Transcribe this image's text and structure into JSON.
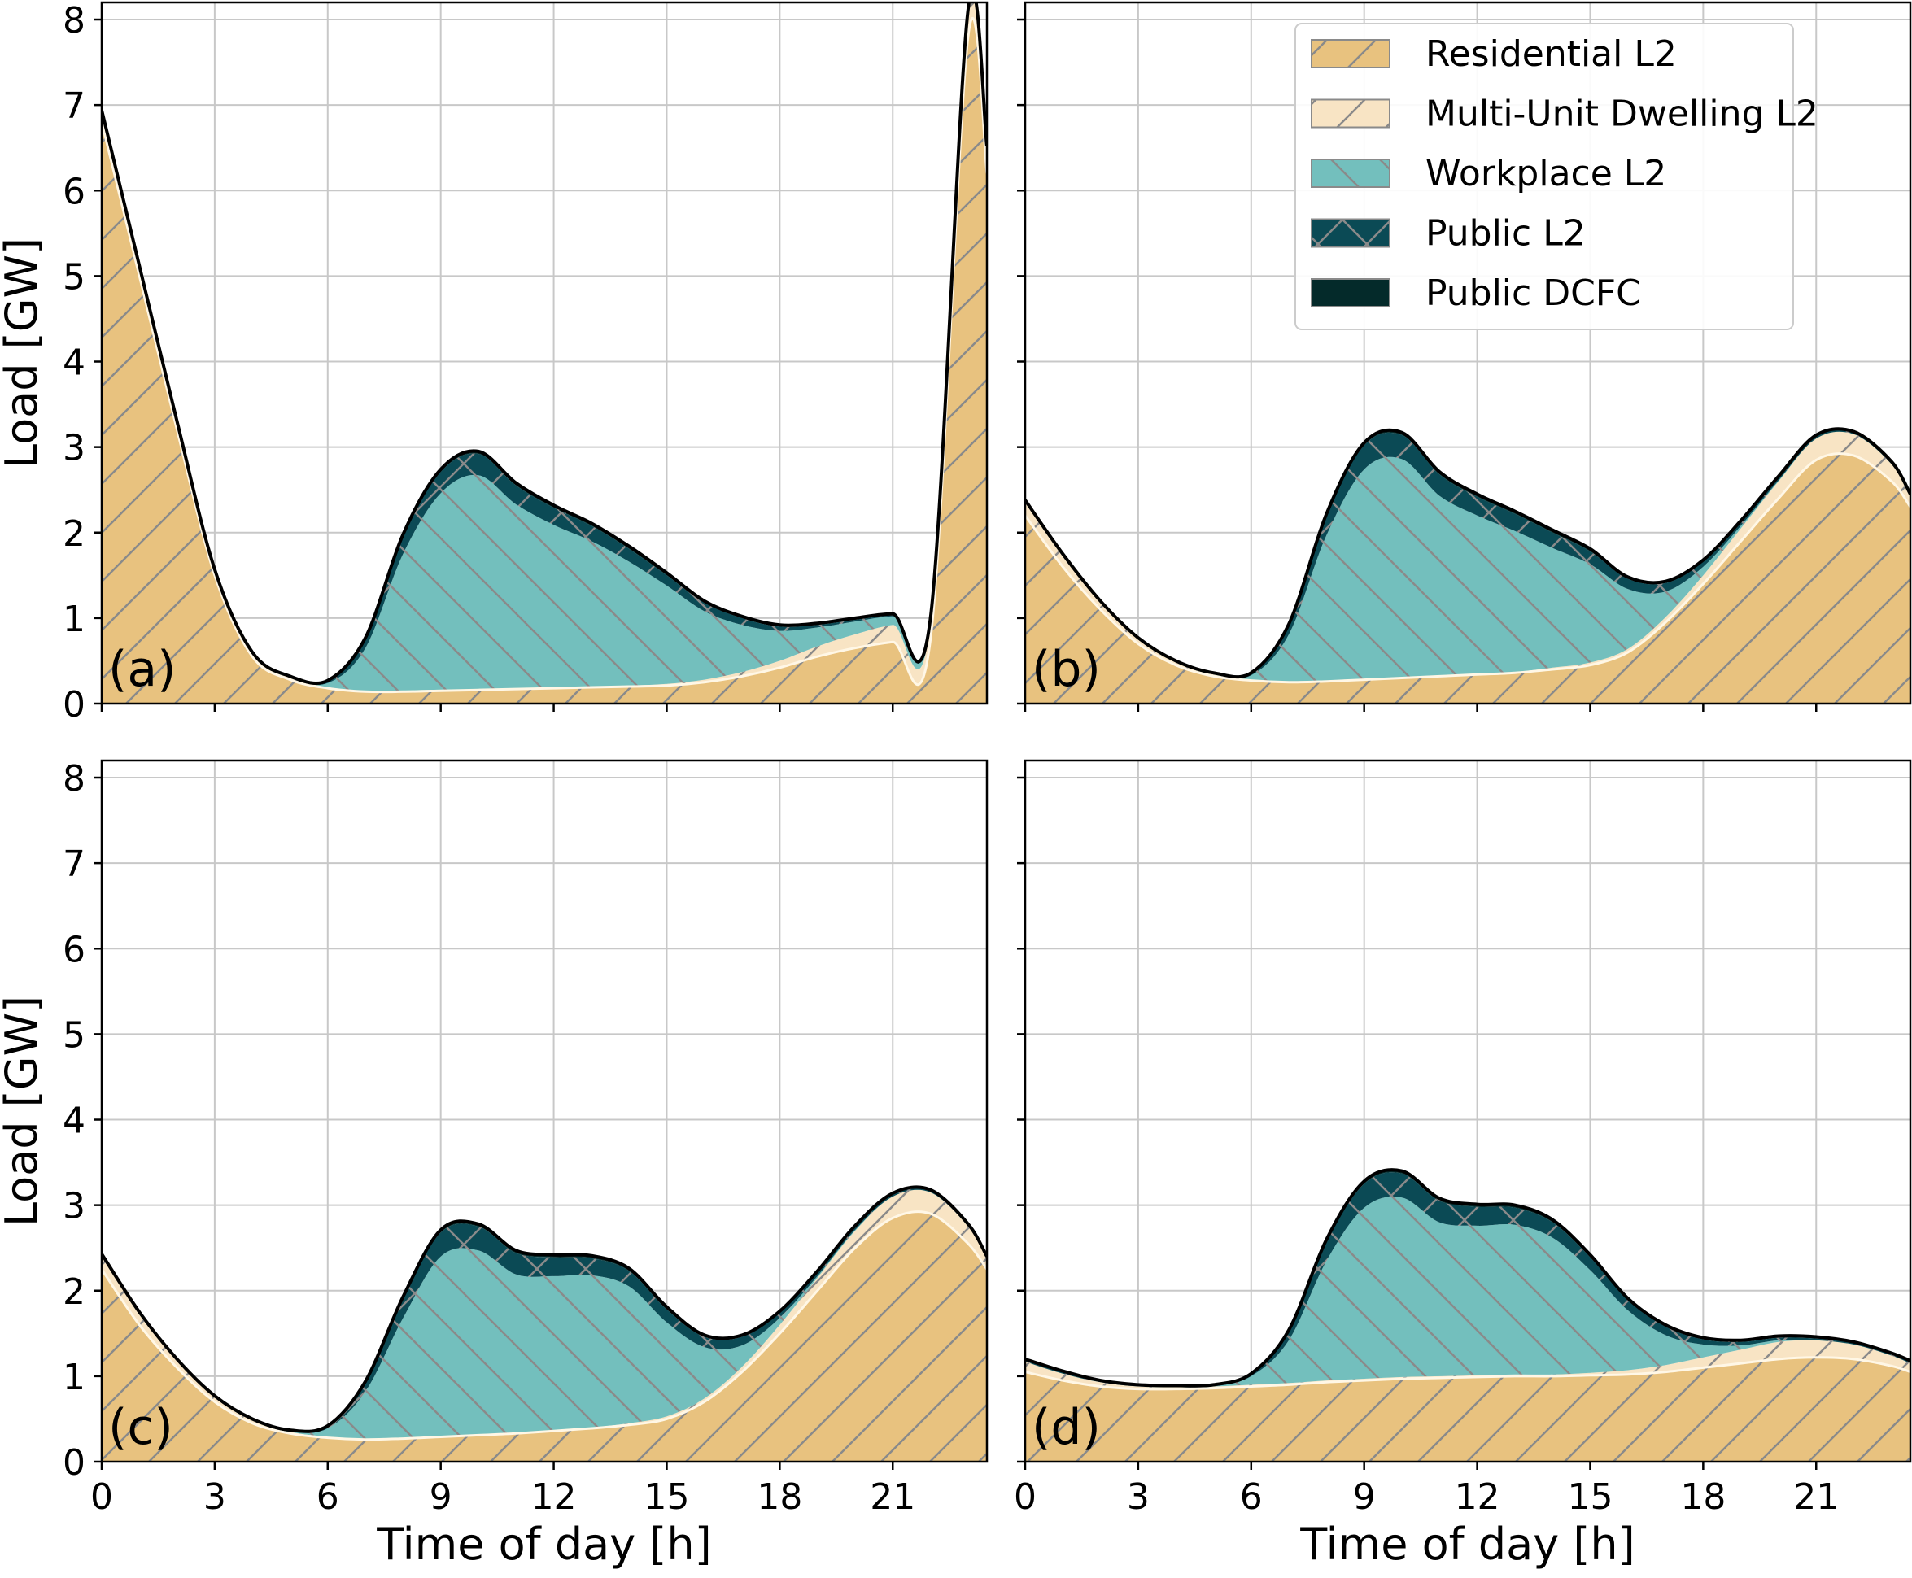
{
  "chart_data": {
    "type": "area",
    "stacked": true,
    "xlabel": "Time of day [h]",
    "ylabel": "Load [GW]",
    "xlim": [
      0,
      23.5
    ],
    "ylim": [
      0,
      8.2
    ],
    "xticks": [
      0,
      3,
      6,
      9,
      12,
      15,
      18,
      21
    ],
    "yticks": [
      0,
      1,
      2,
      3,
      4,
      5,
      6,
      7,
      8
    ],
    "grid": true,
    "legend": {
      "placement": "upper-right of panel (b)",
      "entries": [
        {
          "name": "Residential L2",
          "color": "#E8C27F",
          "hatch": "/"
        },
        {
          "name": "Multi-Unit Dwelling L2",
          "color": "#F8E4C4",
          "hatch": "/"
        },
        {
          "name": "Workplace L2",
          "color": "#73BFBD",
          "hatch": "\\"
        },
        {
          "name": "Public L2",
          "color": "#0B4A55",
          "hatch": "x"
        },
        {
          "name": "Public DCFC",
          "color": "#042A2A",
          "hatch": "o"
        }
      ]
    },
    "x": [
      0,
      1,
      2,
      3,
      4,
      5,
      6,
      7,
      8,
      9,
      10,
      11,
      12,
      13,
      14,
      15,
      16,
      17,
      18,
      19,
      20,
      21,
      22,
      23,
      23.5
    ],
    "panels": [
      {
        "label": "(a)",
        "note_step_at": 22.9,
        "series": [
          {
            "name": "Residential L2",
            "values": [
              6.8,
              5.0,
              3.2,
              1.5,
              0.55,
              0.28,
              0.18,
              0.14,
              0.14,
              0.15,
              0.16,
              0.17,
              0.18,
              0.19,
              0.2,
              0.21,
              0.25,
              0.32,
              0.42,
              0.55,
              0.65,
              0.72,
              0.75,
              7.8,
              6.2
            ]
          },
          {
            "name": "Multi-Unit Dwelling L2",
            "values": [
              0.12,
              0.1,
              0.08,
              0.05,
              0.03,
              0.02,
              0.01,
              0.01,
              0.01,
              0.01,
              0.01,
              0.01,
              0.01,
              0.01,
              0.01,
              0.02,
              0.03,
              0.05,
              0.08,
              0.12,
              0.16,
              0.2,
              0.18,
              0.3,
              0.3
            ]
          },
          {
            "name": "Workplace L2",
            "values": [
              0,
              0,
              0,
              0,
              0,
              0,
              0.05,
              0.5,
              1.6,
              2.3,
              2.5,
              2.15,
              1.9,
              1.7,
              1.45,
              1.15,
              0.8,
              0.55,
              0.35,
              0.22,
              0.15,
              0.1,
              0.05,
              0,
              0
            ]
          },
          {
            "name": "Public L2",
            "values": [
              0.01,
              0.01,
              0.01,
              0.01,
              0.01,
              0.01,
              0.02,
              0.1,
              0.2,
              0.25,
              0.25,
              0.22,
              0.2,
              0.18,
              0.15,
              0.12,
              0.1,
              0.08,
              0.05,
              0.03,
              0.02,
              0.01,
              0.01,
              0.01,
              0.01
            ]
          },
          {
            "name": "Public DCFC",
            "values": [
              0.01,
              0.01,
              0.01,
              0.01,
              0.01,
              0.01,
              0.01,
              0.02,
              0.03,
              0.03,
              0.03,
              0.03,
              0.03,
              0.03,
              0.03,
              0.03,
              0.02,
              0.02,
              0.02,
              0.02,
              0.02,
              0.02,
              0.01,
              0.01,
              0.01
            ]
          }
        ]
      },
      {
        "label": "(b)",
        "series": [
          {
            "name": "Residential L2",
            "values": [
              2.2,
              1.6,
              1.1,
              0.7,
              0.45,
              0.32,
              0.27,
              0.25,
              0.26,
              0.28,
              0.3,
              0.32,
              0.34,
              0.36,
              0.4,
              0.45,
              0.6,
              0.95,
              1.4,
              1.9,
              2.4,
              2.85,
              2.9,
              2.6,
              2.3
            ]
          },
          {
            "name": "Multi-Unit Dwelling L2",
            "values": [
              0.15,
              0.12,
              0.08,
              0.05,
              0.03,
              0.02,
              0.01,
              0.01,
              0.01,
              0.01,
              0.01,
              0.01,
              0.01,
              0.01,
              0.02,
              0.03,
              0.04,
              0.06,
              0.1,
              0.15,
              0.2,
              0.25,
              0.25,
              0.2,
              0.12
            ]
          },
          {
            "name": "Workplace L2",
            "values": [
              0,
              0,
              0,
              0,
              0,
              0,
              0.05,
              0.55,
              1.7,
              2.45,
              2.55,
              2.1,
              1.85,
              1.65,
              1.4,
              1.15,
              0.7,
              0.3,
              0.1,
              0.03,
              0.01,
              0,
              0,
              0,
              0
            ]
          },
          {
            "name": "Public L2",
            "values": [
              0.02,
              0.02,
              0.01,
              0.01,
              0.01,
              0.01,
              0.02,
              0.1,
              0.22,
              0.28,
              0.28,
              0.25,
              0.22,
              0.2,
              0.18,
              0.15,
              0.12,
              0.1,
              0.06,
              0.04,
              0.03,
              0.02,
              0.02,
              0.02,
              0.02
            ]
          },
          {
            "name": "Public DCFC",
            "values": [
              0.01,
              0.01,
              0.01,
              0.01,
              0.01,
              0.01,
              0.01,
              0.02,
              0.03,
              0.03,
              0.03,
              0.03,
              0.03,
              0.03,
              0.03,
              0.03,
              0.02,
              0.02,
              0.02,
              0.02,
              0.02,
              0.02,
              0.01,
              0.01,
              0.01
            ]
          }
        ]
      },
      {
        "label": "(c)",
        "series": [
          {
            "name": "Residential L2",
            "values": [
              2.25,
              1.6,
              1.1,
              0.7,
              0.45,
              0.33,
              0.28,
              0.26,
              0.27,
              0.29,
              0.31,
              0.33,
              0.36,
              0.39,
              0.43,
              0.5,
              0.7,
              1.05,
              1.5,
              2.0,
              2.5,
              2.85,
              2.9,
              2.55,
              2.25
            ]
          },
          {
            "name": "Multi-Unit Dwelling L2",
            "values": [
              0.15,
              0.12,
              0.08,
              0.05,
              0.03,
              0.02,
              0.01,
              0.01,
              0.01,
              0.01,
              0.01,
              0.01,
              0.01,
              0.01,
              0.02,
              0.03,
              0.04,
              0.06,
              0.1,
              0.15,
              0.2,
              0.25,
              0.25,
              0.2,
              0.12
            ]
          },
          {
            "name": "Workplace L2",
            "values": [
              0,
              0,
              0,
              0,
              0,
              0,
              0.1,
              0.55,
              1.4,
              2.1,
              2.15,
              1.85,
              1.8,
              1.78,
              1.6,
              1.1,
              0.6,
              0.25,
              0.08,
              0.02,
              0.01,
              0,
              0,
              0,
              0
            ]
          },
          {
            "name": "Public L2",
            "values": [
              0.02,
              0.02,
              0.01,
              0.01,
              0.01,
              0.01,
              0.02,
              0.1,
              0.22,
              0.28,
              0.28,
              0.25,
              0.22,
              0.2,
              0.18,
              0.15,
              0.12,
              0.1,
              0.06,
              0.04,
              0.03,
              0.02,
              0.02,
              0.02,
              0.02
            ]
          },
          {
            "name": "Public DCFC",
            "values": [
              0.01,
              0.01,
              0.01,
              0.01,
              0.01,
              0.01,
              0.01,
              0.02,
              0.03,
              0.03,
              0.03,
              0.03,
              0.03,
              0.03,
              0.03,
              0.03,
              0.02,
              0.02,
              0.02,
              0.02,
              0.02,
              0.02,
              0.01,
              0.01,
              0.01
            ]
          }
        ]
      },
      {
        "label": "(d)",
        "series": [
          {
            "name": "Residential L2",
            "values": [
              1.05,
              0.95,
              0.88,
              0.85,
              0.85,
              0.86,
              0.88,
              0.9,
              0.93,
              0.95,
              0.97,
              0.98,
              0.99,
              1.0,
              1.0,
              1.01,
              1.02,
              1.05,
              1.1,
              1.15,
              1.2,
              1.22,
              1.2,
              1.12,
              1.05
            ]
          },
          {
            "name": "Multi-Unit Dwelling L2",
            "values": [
              0.12,
              0.08,
              0.05,
              0.03,
              0.02,
              0.02,
              0.02,
              0.02,
              0.02,
              0.02,
              0.02,
              0.02,
              0.02,
              0.02,
              0.02,
              0.03,
              0.05,
              0.08,
              0.12,
              0.16,
              0.2,
              0.2,
              0.17,
              0.12,
              0.1
            ]
          },
          {
            "name": "Workplace L2",
            "values": [
              0,
              0,
              0,
              0,
              0,
              0,
              0.1,
              0.5,
              1.4,
              2.0,
              2.1,
              1.8,
              1.75,
              1.75,
              1.6,
              1.2,
              0.7,
              0.35,
              0.15,
              0.05,
              0.02,
              0,
              0,
              0,
              0
            ]
          },
          {
            "name": "Public L2",
            "values": [
              0.02,
              0.02,
              0.01,
              0.01,
              0.01,
              0.01,
              0.02,
              0.1,
              0.22,
              0.28,
              0.28,
              0.25,
              0.22,
              0.2,
              0.18,
              0.15,
              0.12,
              0.1,
              0.06,
              0.04,
              0.03,
              0.02,
              0.02,
              0.02,
              0.02
            ]
          },
          {
            "name": "Public DCFC",
            "values": [
              0.01,
              0.01,
              0.01,
              0.01,
              0.01,
              0.01,
              0.01,
              0.02,
              0.03,
              0.03,
              0.03,
              0.03,
              0.03,
              0.03,
              0.03,
              0.03,
              0.02,
              0.02,
              0.02,
              0.02,
              0.02,
              0.02,
              0.01,
              0.01,
              0.01
            ]
          }
        ]
      }
    ]
  }
}
